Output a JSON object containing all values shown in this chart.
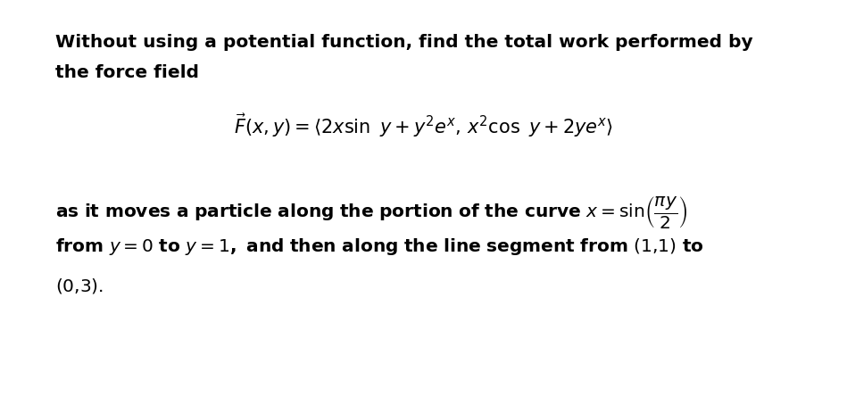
{
  "background_color": "#ffffff",
  "figsize": [
    9.49,
    4.45
  ],
  "dpi": 100,
  "line1": "Without using a potential function, find the total work performed by",
  "line2": "the force field",
  "formula": "$\\vec{F}(x, y) = \\langle 2x\\sin\\ y + y^2e^x,\\, x^2\\cos\\ y + 2ye^x\\rangle$",
  "text_color": "#000000",
  "bold_fontsize": 14.5,
  "formula_fontsize": 15.0
}
